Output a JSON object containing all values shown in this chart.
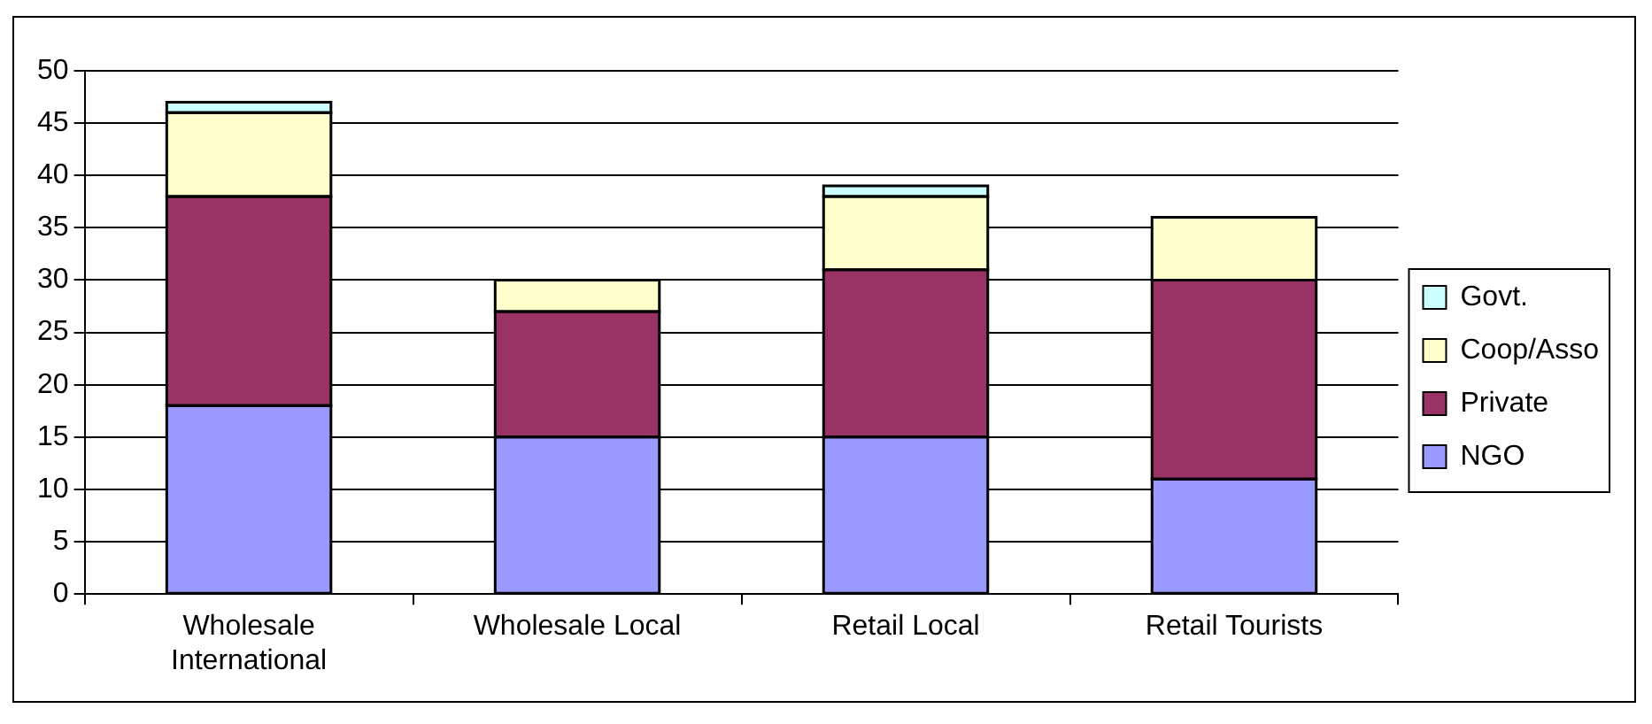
{
  "chart_data": {
    "type": "bar",
    "stacked": true,
    "categories": [
      "Wholesale International",
      "Wholesale Local",
      "Retail Local",
      "Retail Tourists"
    ],
    "series": [
      {
        "name": "NGO",
        "color": "#9999ff",
        "values": [
          18,
          15,
          15,
          11
        ]
      },
      {
        "name": "Private",
        "color": "#993366",
        "values": [
          20,
          12,
          16,
          19
        ]
      },
      {
        "name": "Coop/Asso",
        "color": "#ffffcc",
        "values": [
          8,
          3,
          7,
          6
        ]
      },
      {
        "name": "Govt.",
        "color": "#ccffff",
        "values": [
          1,
          0,
          1,
          0
        ]
      }
    ],
    "ylim": [
      0,
      50
    ],
    "yticks": [
      0,
      5,
      10,
      15,
      20,
      25,
      30,
      35,
      40,
      45,
      50
    ],
    "grid": "y",
    "legend": "right"
  }
}
